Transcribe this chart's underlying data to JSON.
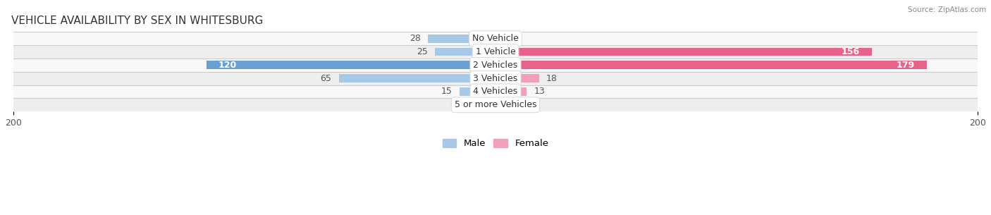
{
  "title": "VEHICLE AVAILABILITY BY SEX IN WHITESBURG",
  "source": "Source: ZipAtlas.com",
  "categories": [
    "No Vehicle",
    "1 Vehicle",
    "2 Vehicles",
    "3 Vehicles",
    "4 Vehicles",
    "5 or more Vehicles"
  ],
  "male_values": [
    28,
    25,
    120,
    65,
    15,
    0
  ],
  "female_values": [
    0,
    156,
    179,
    18,
    13,
    0
  ],
  "male_color_dark": "#6a9fd4",
  "male_color_light": "#a8c8e8",
  "female_color_dark": "#e8638a",
  "female_color_light": "#f0a0bc",
  "xlim": 200,
  "bar_height": 0.62,
  "row_color_light": "#f8f8f8",
  "row_color_dark": "#eeeeee",
  "separator_color": "#cccccc",
  "title_fontsize": 11,
  "label_fontsize": 9,
  "tick_fontsize": 9,
  "legend_fontsize": 9.5
}
